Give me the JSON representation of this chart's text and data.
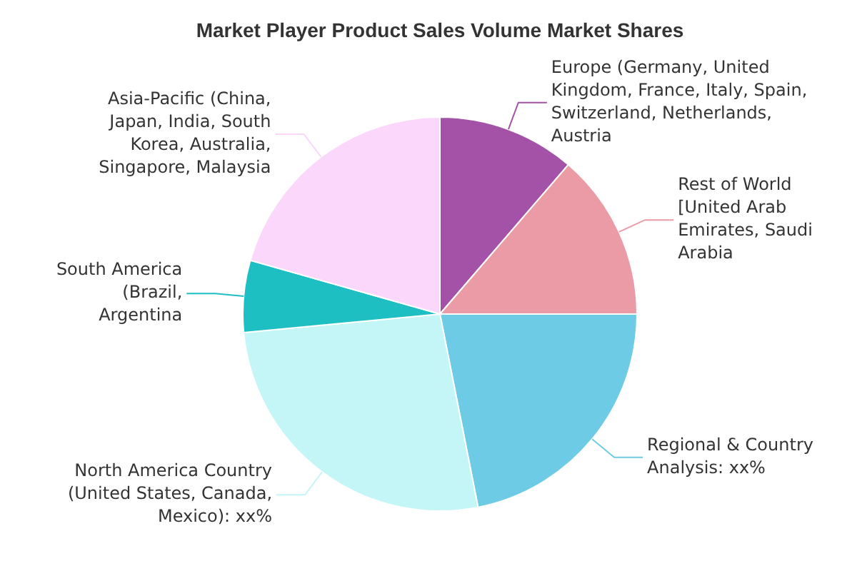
{
  "chart_data": {
    "type": "pie",
    "title": "Market Player Product Sales Volume Market Shares",
    "categories": [
      "Europe (Germany, United Kingdom, France, Italy, Spain, Switzerland, Netherlands, Austria",
      "Rest of World [United Arab Emirates, Saudi Arabia",
      "Regional & Country Analysis: xx%",
      "North America Country (United States, Canada, Mexico): xx%",
      "South America (Brazil, Argentina",
      "Asia-Pacific (China, Japan, India, South Korea, Australia, Singapore, Malaysia"
    ],
    "values": [
      11.3,
      13.7,
      21.9,
      26.6,
      5.9,
      20.6
    ],
    "colors": [
      "#a352a8",
      "#eb9ba6",
      "#6dcbe6",
      "#c4f6f8",
      "#1ebfc3",
      "#fad7fb"
    ]
  }
}
